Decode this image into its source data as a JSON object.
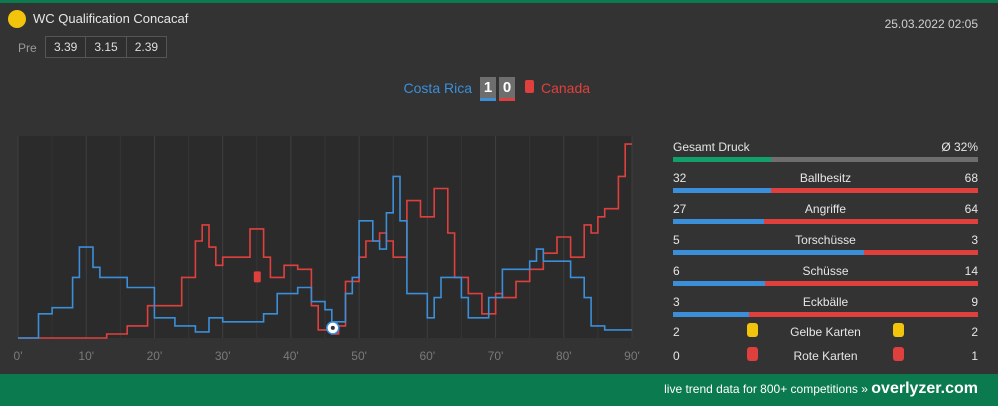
{
  "header": {
    "league": "WC Qualification Concacaf",
    "datetime": "25.03.2022 02:05",
    "pre_label": "Pre",
    "odds": [
      "3.39",
      "3.15",
      "2.39"
    ],
    "league_icon_color": "#f2c40c"
  },
  "match": {
    "home_team": "Costa Rica",
    "away_team": "Canada",
    "home_score": "1",
    "away_score": "0",
    "home_color": "#3b8fd9",
    "away_color": "#e0403d"
  },
  "chart_data": {
    "type": "line",
    "x_ticks": [
      "0'",
      "10'",
      "20'",
      "30'",
      "40'",
      "50'",
      "60'",
      "70'",
      "80'",
      "90'"
    ],
    "xlim": [
      0,
      90
    ],
    "ylim": [
      0,
      100
    ],
    "grid": true,
    "series": [
      {
        "color": "#3b8fd9",
        "points": [
          [
            0,
            0
          ],
          [
            3,
            0
          ],
          [
            3,
            12
          ],
          [
            5,
            12
          ],
          [
            5,
            15
          ],
          [
            8,
            15
          ],
          [
            8,
            30
          ],
          [
            9,
            30
          ],
          [
            9,
            45
          ],
          [
            11,
            45
          ],
          [
            11,
            35
          ],
          [
            12,
            35
          ],
          [
            12,
            30
          ],
          [
            16,
            30
          ],
          [
            16,
            25
          ],
          [
            20,
            25
          ],
          [
            20,
            10
          ],
          [
            23,
            10
          ],
          [
            23,
            6
          ],
          [
            26,
            6
          ],
          [
            26,
            3
          ],
          [
            28,
            3
          ],
          [
            28,
            10
          ],
          [
            30,
            10
          ],
          [
            30,
            8
          ],
          [
            36,
            8
          ],
          [
            36,
            12
          ],
          [
            38,
            12
          ],
          [
            38,
            22
          ],
          [
            41,
            22
          ],
          [
            41,
            25
          ],
          [
            43,
            25
          ],
          [
            43,
            18
          ],
          [
            45,
            18
          ],
          [
            45,
            14
          ],
          [
            46,
            14
          ],
          [
            46,
            8
          ],
          [
            48,
            8
          ],
          [
            48,
            22
          ],
          [
            49,
            22
          ],
          [
            49,
            30
          ],
          [
            50,
            30
          ],
          [
            50,
            58
          ],
          [
            52,
            58
          ],
          [
            52,
            48
          ],
          [
            53,
            48
          ],
          [
            53,
            44
          ],
          [
            54,
            44
          ],
          [
            54,
            62
          ],
          [
            55,
            62
          ],
          [
            55,
            80
          ],
          [
            56,
            80
          ],
          [
            56,
            58
          ],
          [
            57,
            58
          ],
          [
            57,
            22
          ],
          [
            60,
            22
          ],
          [
            60,
            10
          ],
          [
            61,
            10
          ],
          [
            61,
            20
          ],
          [
            62,
            20
          ],
          [
            62,
            30
          ],
          [
            65,
            30
          ],
          [
            65,
            20
          ],
          [
            66,
            20
          ],
          [
            66,
            10
          ],
          [
            69,
            10
          ],
          [
            69,
            20
          ],
          [
            71,
            20
          ],
          [
            71,
            34
          ],
          [
            75,
            34
          ],
          [
            75,
            38
          ],
          [
            76,
            38
          ],
          [
            76,
            44
          ],
          [
            77,
            44
          ],
          [
            77,
            38
          ],
          [
            81,
            38
          ],
          [
            81,
            30
          ],
          [
            83,
            30
          ],
          [
            83,
            20
          ],
          [
            84,
            20
          ],
          [
            84,
            6
          ],
          [
            86,
            6
          ],
          [
            86,
            4
          ],
          [
            90,
            4
          ]
        ]
      },
      {
        "color": "#e0403d",
        "points": [
          [
            0,
            0
          ],
          [
            13,
            0
          ],
          [
            13,
            2
          ],
          [
            16,
            2
          ],
          [
            16,
            6
          ],
          [
            19,
            6
          ],
          [
            19,
            16
          ],
          [
            24,
            16
          ],
          [
            24,
            30
          ],
          [
            26,
            30
          ],
          [
            26,
            48
          ],
          [
            27,
            48
          ],
          [
            27,
            56
          ],
          [
            28,
            56
          ],
          [
            28,
            45
          ],
          [
            29,
            45
          ],
          [
            29,
            36
          ],
          [
            30,
            36
          ],
          [
            30,
            40
          ],
          [
            34,
            40
          ],
          [
            34,
            54
          ],
          [
            36,
            54
          ],
          [
            36,
            40
          ],
          [
            37,
            40
          ],
          [
            37,
            30
          ],
          [
            39,
            30
          ],
          [
            39,
            36
          ],
          [
            41,
            36
          ],
          [
            41,
            34
          ],
          [
            43,
            34
          ],
          [
            43,
            16
          ],
          [
            44,
            16
          ],
          [
            44,
            4
          ],
          [
            46,
            4
          ],
          [
            46,
            2
          ],
          [
            47,
            2
          ],
          [
            47,
            6
          ],
          [
            48,
            6
          ],
          [
            48,
            28
          ],
          [
            50,
            28
          ],
          [
            50,
            40
          ],
          [
            51,
            40
          ],
          [
            51,
            48
          ],
          [
            53,
            48
          ],
          [
            53,
            52
          ],
          [
            54,
            52
          ],
          [
            54,
            48
          ],
          [
            55,
            48
          ],
          [
            55,
            40
          ],
          [
            57,
            40
          ],
          [
            57,
            68
          ],
          [
            59,
            68
          ],
          [
            59,
            60
          ],
          [
            61,
            60
          ],
          [
            61,
            74
          ],
          [
            63,
            74
          ],
          [
            63,
            52
          ],
          [
            64,
            52
          ],
          [
            64,
            30
          ],
          [
            66,
            30
          ],
          [
            66,
            22
          ],
          [
            68,
            22
          ],
          [
            68,
            12
          ],
          [
            70,
            12
          ],
          [
            70,
            22
          ],
          [
            71,
            22
          ],
          [
            71,
            20
          ],
          [
            73,
            20
          ],
          [
            73,
            28
          ],
          [
            75,
            28
          ],
          [
            75,
            34
          ],
          [
            77,
            34
          ],
          [
            77,
            42
          ],
          [
            79,
            42
          ],
          [
            79,
            50
          ],
          [
            81,
            50
          ],
          [
            81,
            40
          ],
          [
            83,
            40
          ],
          [
            83,
            56
          ],
          [
            84,
            56
          ],
          [
            84,
            52
          ],
          [
            85,
            52
          ],
          [
            85,
            60
          ],
          [
            86,
            60
          ],
          [
            86,
            64
          ],
          [
            88,
            64
          ],
          [
            88,
            80
          ],
          [
            89,
            80
          ],
          [
            89,
            96
          ],
          [
            90,
            96
          ]
        ]
      }
    ],
    "events": [
      {
        "type": "red-card",
        "team": "away",
        "minute": 35
      },
      {
        "type": "goal",
        "team": "home",
        "minute": 46
      }
    ]
  },
  "stats": {
    "pressure": {
      "label": "Gesamt Druck",
      "value": "Ø 32%",
      "fraction": 0.32
    },
    "rows": [
      {
        "label": "Ballbesitz",
        "home": "32",
        "away": "68",
        "home_fraction": 0.32
      },
      {
        "label": "Angriffe",
        "home": "27",
        "away": "64",
        "home_fraction": 0.297
      },
      {
        "label": "Torschüsse",
        "home": "5",
        "away": "3",
        "home_fraction": 0.625
      },
      {
        "label": "Schüsse",
        "home": "6",
        "away": "14",
        "home_fraction": 0.3
      },
      {
        "label": "Eckbälle",
        "home": "3",
        "away": "9",
        "home_fraction": 0.25
      }
    ],
    "yellow": {
      "label": "Gelbe Karten",
      "home": "2",
      "away": "2",
      "color": "#f2c40c"
    },
    "red": {
      "label": "Rote Karten",
      "home": "0",
      "away": "1",
      "color": "#e0403d"
    }
  },
  "footer": {
    "text": "live trend data for 800+ competitions »",
    "brand": "overlyzer.com"
  }
}
